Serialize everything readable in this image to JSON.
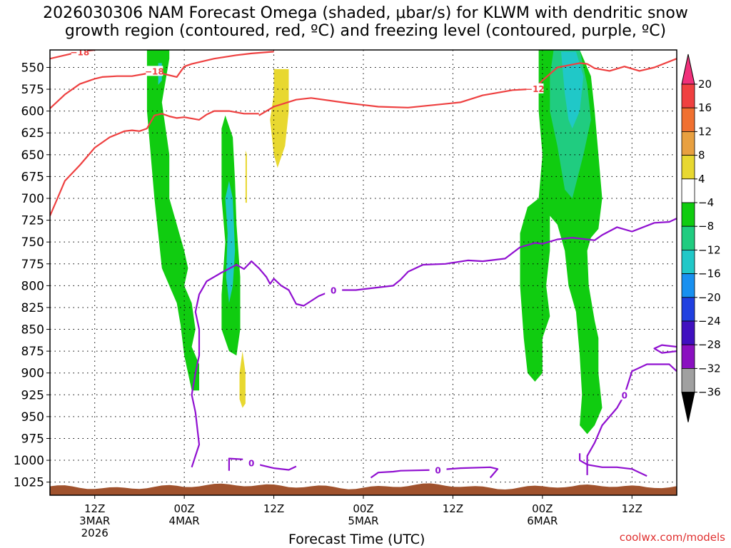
{
  "title": {
    "line1": "2026030306 NAM Forecast Omega (shaded, μbar/s) for KLWM with dendritic snow",
    "line2": "growth region (contoured, red, ºC) and freezing level (contoured, purple, ºC)"
  },
  "credit": "coolwx.com/models",
  "chart_data": {
    "type": "heatmap",
    "xlabel": "Forecast Time (UTC)",
    "y_ticks": [
      "550",
      "575",
      "600",
      "625",
      "650",
      "675",
      "700",
      "725",
      "750",
      "775",
      "800",
      "825",
      "850",
      "875",
      "900",
      "925",
      "950",
      "975",
      "1000",
      "1025"
    ],
    "x_ticks": [
      {
        "label": "12Z",
        "sub": "3MAR",
        "sub2": "2026"
      },
      {
        "label": "00Z",
        "sub": "4MAR",
        "sub2": ""
      },
      {
        "label": "12Z",
        "sub": "",
        "sub2": ""
      },
      {
        "label": "00Z",
        "sub": "5MAR",
        "sub2": ""
      },
      {
        "label": "12Z",
        "sub": "",
        "sub2": ""
      },
      {
        "label": "00Z",
        "sub": "6MAR",
        "sub2": ""
      },
      {
        "label": "12Z",
        "sub": "",
        "sub2": ""
      }
    ],
    "forecast_hours": [
      0,
      84
    ],
    "pressure_range_hPa": [
      530,
      1040
    ],
    "grid": true,
    "colorbar": {
      "labels": [
        "20",
        "16",
        "12",
        "8",
        "4",
        "−4",
        "−8",
        "−12",
        "−16",
        "−20",
        "−24",
        "−28",
        "−32",
        "−36"
      ],
      "colors": [
        "#f0307a",
        "#f04040",
        "#f07030",
        "#e8a040",
        "#e8d830",
        "#ffffff",
        "#10cc10",
        "#20cc80",
        "#20c8c8",
        "#1890f0",
        "#2040e0",
        "#4010c0",
        "#8a10c0",
        "#a0a0a0",
        "#000000"
      ]
    },
    "dendritic_contours": [
      {
        "label": "−18",
        "color": "#ee4040",
        "points": [
          [
            0,
            540
          ],
          [
            3,
            534
          ],
          [
            4,
            532
          ],
          [
            6,
            530
          ]
        ]
      },
      {
        "label": "−18",
        "color": "#ee4040",
        "points": [
          [
            0,
            597
          ],
          [
            2,
            581
          ],
          [
            4,
            569
          ],
          [
            6,
            563
          ],
          [
            7,
            561
          ],
          [
            9,
            560
          ],
          [
            11,
            560
          ],
          [
            13,
            557
          ],
          [
            14,
            554
          ],
          [
            15,
            557
          ],
          [
            17,
            561
          ],
          [
            18,
            549
          ],
          [
            19,
            546
          ],
          [
            22,
            540
          ],
          [
            25,
            536
          ],
          [
            27,
            534
          ],
          [
            30,
            532
          ]
        ]
      },
      {
        "label": "−12",
        "color": "#ee4040",
        "points": [
          [
            28,
            605
          ],
          [
            30,
            595
          ],
          [
            33,
            587
          ],
          [
            35,
            585
          ],
          [
            40,
            591
          ],
          [
            44,
            595
          ],
          [
            48,
            596
          ],
          [
            55,
            590
          ],
          [
            58,
            582
          ],
          [
            62,
            576
          ],
          [
            64,
            575
          ],
          [
            65,
            574
          ],
          [
            66,
            565
          ],
          [
            68,
            550
          ],
          [
            71,
            545
          ],
          [
            72,
            546
          ],
          [
            73,
            551
          ],
          [
            75,
            554
          ],
          [
            77,
            549
          ],
          [
            79,
            554
          ],
          [
            81,
            550
          ],
          [
            84,
            540
          ]
        ]
      },
      {
        "label": "",
        "color": "#ee4040",
        "points": [
          [
            0,
            720
          ],
          [
            1,
            700
          ],
          [
            2,
            680
          ],
          [
            4,
            662
          ],
          [
            6,
            642
          ],
          [
            8,
            630
          ],
          [
            10,
            623
          ],
          [
            11,
            622
          ],
          [
            12,
            623
          ],
          [
            13,
            620
          ],
          [
            14,
            605
          ],
          [
            15,
            603
          ],
          [
            16,
            606
          ],
          [
            17,
            608
          ],
          [
            18,
            607
          ],
          [
            20,
            610
          ],
          [
            21,
            604
          ],
          [
            22,
            600
          ],
          [
            24,
            600
          ],
          [
            26,
            603
          ],
          [
            28,
            603
          ]
        ]
      }
    ],
    "freezing_contours": [
      {
        "label": "0",
        "color": "#9010d0",
        "points": [
          [
            19,
            1008
          ],
          [
            20,
            982
          ],
          [
            19.5,
            945
          ],
          [
            19,
            925
          ],
          [
            19.5,
            900
          ],
          [
            20,
            880
          ],
          [
            20,
            850
          ],
          [
            19.5,
            830
          ],
          [
            20,
            810
          ],
          [
            21,
            795
          ],
          [
            23,
            785
          ],
          [
            25,
            776
          ],
          [
            26,
            781
          ],
          [
            27,
            772
          ],
          [
            28,
            780
          ],
          [
            29,
            790
          ],
          [
            29.5,
            798
          ],
          [
            30,
            792
          ],
          [
            31,
            800
          ],
          [
            32,
            805
          ],
          [
            33,
            821
          ],
          [
            34,
            823
          ],
          [
            36,
            812
          ],
          [
            38,
            805
          ],
          [
            41,
            805
          ],
          [
            43,
            803
          ],
          [
            46,
            800
          ],
          [
            47,
            793
          ],
          [
            48,
            784
          ],
          [
            50,
            776
          ],
          [
            53,
            775
          ],
          [
            56,
            771
          ],
          [
            58,
            772
          ],
          [
            61,
            769
          ],
          [
            63,
            756
          ],
          [
            65,
            751
          ],
          [
            66,
            752
          ],
          [
            68,
            747
          ],
          [
            70,
            745
          ],
          [
            73,
            748
          ],
          [
            74,
            742
          ],
          [
            76,
            733
          ],
          [
            78,
            738
          ],
          [
            81,
            728
          ],
          [
            83,
            727
          ],
          [
            84,
            723
          ]
        ]
      },
      {
        "label": "0",
        "color": "#9010d0",
        "points": [
          [
            24,
            1012
          ],
          [
            24,
            998
          ],
          [
            26,
            999
          ],
          [
            27,
            1003
          ],
          [
            30,
            1009
          ],
          [
            32,
            1011
          ],
          [
            33,
            1007
          ]
        ]
      },
      {
        "label": "0",
        "color": "#9010d0",
        "points": [
          [
            43,
            1020
          ],
          [
            44,
            1014
          ],
          [
            46,
            1013
          ],
          [
            47,
            1012
          ],
          [
            52,
            1011
          ],
          [
            55,
            1009
          ],
          [
            59,
            1008
          ],
          [
            60,
            1010
          ],
          [
            59,
            1020
          ]
        ]
      },
      {
        "label": "0",
        "color": "#9010d0",
        "points": [
          [
            72,
            1017
          ],
          [
            72,
            995
          ],
          [
            73,
            980
          ],
          [
            74,
            960
          ],
          [
            76,
            940
          ],
          [
            77,
            925
          ],
          [
            78,
            898
          ],
          [
            80,
            890
          ],
          [
            83,
            890
          ],
          [
            84,
            898
          ]
        ]
      },
      {
        "label": "",
        "color": "#9010d0",
        "points": [
          [
            80,
            1018
          ],
          [
            78,
            1010
          ],
          [
            76,
            1008
          ],
          [
            74,
            1008
          ],
          [
            72,
            1005
          ],
          [
            71,
            1000
          ],
          [
            71,
            992
          ]
        ]
      },
      {
        "label": "",
        "color": "#9010d0",
        "points": [
          [
            84,
            870
          ],
          [
            82,
            868
          ],
          [
            81,
            872
          ],
          [
            82,
            877
          ],
          [
            84,
            875
          ]
        ]
      }
    ],
    "omega_regions": [
      {
        "value": -6,
        "color": "#10cc10",
        "points": [
          [
            13,
            530
          ],
          [
            16,
            530
          ],
          [
            16,
            540
          ],
          [
            15,
            590
          ],
          [
            16,
            650
          ],
          [
            16,
            700
          ],
          [
            17,
            730
          ],
          [
            18,
            760
          ],
          [
            18.5,
            780
          ],
          [
            18,
            800
          ],
          [
            19,
            820
          ],
          [
            19.5,
            850
          ],
          [
            19,
            870
          ],
          [
            20,
            890
          ],
          [
            20,
            920
          ],
          [
            19,
            920
          ],
          [
            18,
            880
          ],
          [
            17.5,
            845
          ],
          [
            17,
            820
          ],
          [
            16,
            800
          ],
          [
            15,
            780
          ],
          [
            14.5,
            740
          ],
          [
            14,
            700
          ],
          [
            13.5,
            650
          ],
          [
            13,
            600
          ],
          [
            13,
            560
          ]
        ]
      },
      {
        "value": -10,
        "color": "#20c8c8",
        "points": [
          [
            14.5,
            545
          ],
          [
            15,
            545
          ],
          [
            15,
            565
          ],
          [
            14.5,
            570
          ]
        ]
      },
      {
        "value": -6,
        "color": "#10cc10",
        "points": [
          [
            23.5,
            605
          ],
          [
            24.5,
            630
          ],
          [
            24.8,
            680
          ],
          [
            25,
            730
          ],
          [
            25.5,
            790
          ],
          [
            25.5,
            850
          ],
          [
            25,
            880
          ],
          [
            24,
            875
          ],
          [
            23,
            850
          ],
          [
            23,
            810
          ],
          [
            23.5,
            750
          ],
          [
            23,
            700
          ],
          [
            23,
            650
          ],
          [
            23,
            620
          ]
        ]
      },
      {
        "value": -10,
        "color": "#20c8c8",
        "points": [
          [
            24,
            680
          ],
          [
            24.5,
            700
          ],
          [
            24.8,
            760
          ],
          [
            24.5,
            800
          ],
          [
            24,
            820
          ],
          [
            23.6,
            790
          ],
          [
            23.8,
            740
          ],
          [
            23.5,
            700
          ]
        ]
      },
      {
        "value": 6,
        "color": "#e8d830",
        "points": [
          [
            30,
            552
          ],
          [
            32,
            552
          ],
          [
            32,
            600
          ],
          [
            31.5,
            640
          ],
          [
            30.5,
            665
          ],
          [
            30,
            650
          ],
          [
            29.5,
            610
          ],
          [
            30,
            580
          ]
        ]
      },
      {
        "value": 6,
        "color": "#e8d830",
        "points": [
          [
            26.2,
            645
          ],
          [
            26.4,
            650
          ],
          [
            26.4,
            705
          ],
          [
            26.2,
            705
          ]
        ]
      },
      {
        "value": 6,
        "color": "#e8d830",
        "points": [
          [
            25.8,
            875
          ],
          [
            26.2,
            900
          ],
          [
            26.2,
            935
          ],
          [
            25.8,
            940
          ],
          [
            25.4,
            930
          ],
          [
            25.4,
            900
          ]
        ]
      },
      {
        "value": -6,
        "color": "#10cc10",
        "points": [
          [
            65.5,
            530
          ],
          [
            71,
            530
          ],
          [
            72.5,
            560
          ],
          [
            73,
            600
          ],
          [
            73.5,
            650
          ],
          [
            74,
            700
          ],
          [
            73.5,
            735
          ],
          [
            72.5,
            745
          ],
          [
            72,
            760
          ],
          [
            72.2,
            800
          ],
          [
            73,
            840
          ],
          [
            73.5,
            860
          ],
          [
            73.5,
            900
          ],
          [
            74,
            940
          ],
          [
            73,
            960
          ],
          [
            72,
            970
          ],
          [
            71,
            960
          ],
          [
            71.3,
            925
          ],
          [
            71,
            880
          ],
          [
            70.5,
            830
          ],
          [
            69.5,
            800
          ],
          [
            69,
            760
          ],
          [
            68,
            730
          ],
          [
            67,
            720
          ],
          [
            67,
            760
          ],
          [
            66.5,
            800
          ],
          [
            67,
            835
          ],
          [
            66,
            860
          ],
          [
            66,
            890
          ],
          [
            66,
            900
          ],
          [
            65,
            910
          ],
          [
            64,
            900
          ],
          [
            63.5,
            860
          ],
          [
            63,
            800
          ],
          [
            63,
            740
          ],
          [
            64,
            710
          ],
          [
            65.5,
            700
          ],
          [
            66,
            650
          ],
          [
            65.5,
            600
          ],
          [
            65.5,
            560
          ]
        ]
      },
      {
        "value": -10,
        "color": "#20cc80",
        "points": [
          [
            67.5,
            530
          ],
          [
            71,
            530
          ],
          [
            72,
            570
          ],
          [
            72.5,
            610
          ],
          [
            71.5,
            650
          ],
          [
            70,
            700
          ],
          [
            69,
            690
          ],
          [
            68,
            640
          ],
          [
            67,
            600
          ],
          [
            67,
            560
          ]
        ]
      },
      {
        "value": -14,
        "color": "#20c8c8",
        "points": [
          [
            68.5,
            532
          ],
          [
            70.5,
            532
          ],
          [
            71.5,
            560
          ],
          [
            71,
            600
          ],
          [
            70,
            620
          ],
          [
            69.5,
            610
          ],
          [
            69,
            580
          ]
        ]
      }
    ]
  }
}
